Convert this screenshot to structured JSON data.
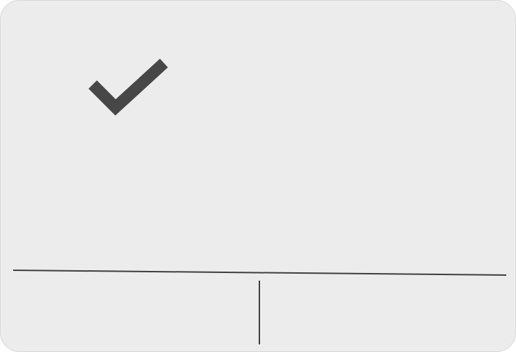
{
  "dialog": {
    "icon": "check-icon",
    "status_message": "",
    "buttons": [
      {
        "label": ""
      },
      {
        "label": ""
      }
    ]
  },
  "colors": {
    "dialog_background": "#ececec",
    "icon": "#474747",
    "divider": "#3c3c3c"
  }
}
